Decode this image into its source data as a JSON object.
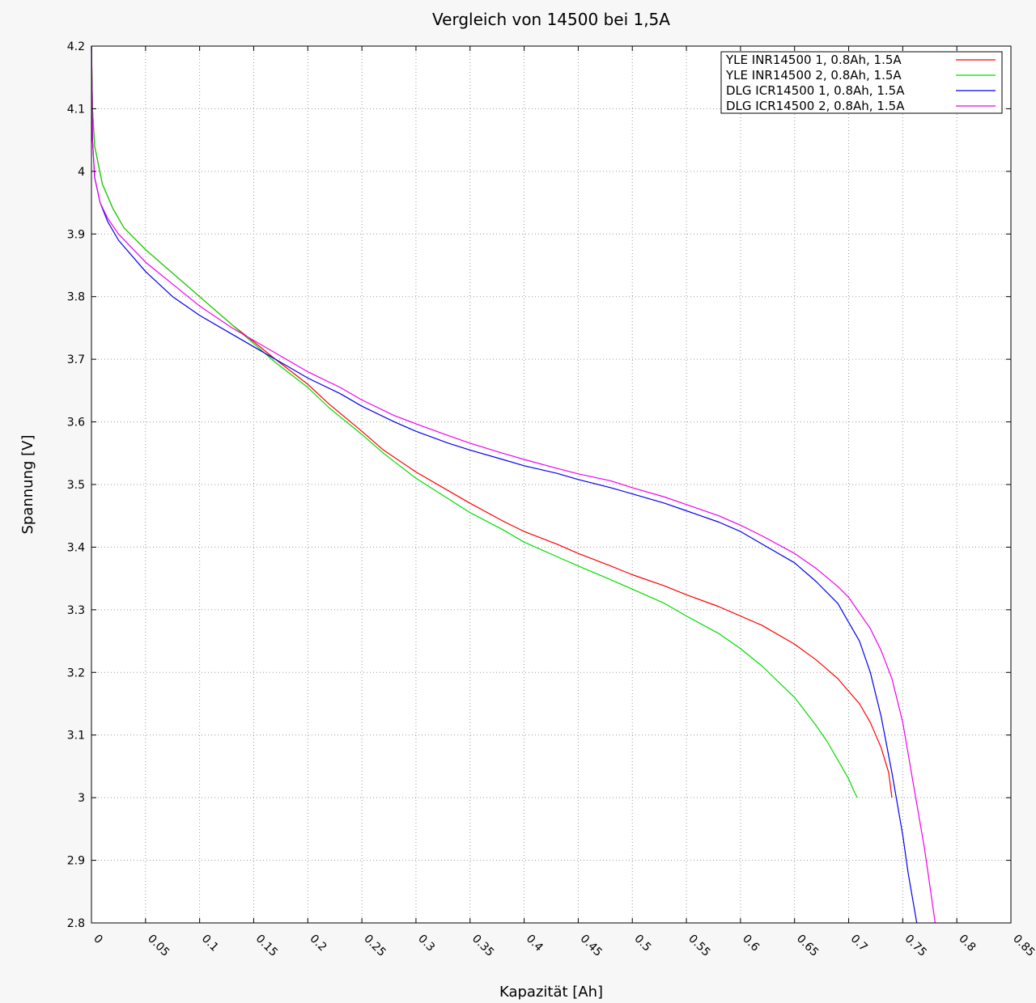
{
  "chart_data": {
    "type": "line",
    "title": "Vergleich von 14500 bei 1,5A",
    "xlabel": "Kapazität [Ah]",
    "ylabel": "Spannung [V]",
    "xlim": [
      0,
      0.85
    ],
    "ylim": [
      2.8,
      4.2
    ],
    "x_ticks": [
      "0",
      "0.05",
      "0.1",
      "0.15",
      "0.2",
      "0.25",
      "0.3",
      "0.35",
      "0.4",
      "0.45",
      "0.5",
      "0.55",
      "0.6",
      "0.65",
      "0.7",
      "0.75",
      "0.8",
      "0.85"
    ],
    "y_ticks": [
      "2.8",
      "2.9",
      "3",
      "3.1",
      "3.2",
      "3.3",
      "3.4",
      "3.5",
      "3.6",
      "3.7",
      "3.8",
      "3.9",
      "4",
      "4.1",
      "4.2"
    ],
    "grid": true,
    "legend_position": "top-right",
    "series": [
      {
        "name": "YLE INR14500 1, 0.8Ah, 1.5A",
        "color": "#ff0000",
        "x": [
          0,
          0.001,
          0.003,
          0.01,
          0.02,
          0.03,
          0.05,
          0.07,
          0.1,
          0.13,
          0.15,
          0.17,
          0.2,
          0.22,
          0.25,
          0.27,
          0.3,
          0.33,
          0.35,
          0.38,
          0.4,
          0.43,
          0.45,
          0.48,
          0.5,
          0.53,
          0.55,
          0.58,
          0.6,
          0.62,
          0.65,
          0.67,
          0.69,
          0.7,
          0.71,
          0.72,
          0.73,
          0.737,
          0.74
        ],
        "y": [
          4.2,
          4.1,
          4.04,
          3.98,
          3.94,
          3.91,
          3.875,
          3.845,
          3.8,
          3.755,
          3.728,
          3.7,
          3.66,
          3.628,
          3.585,
          3.555,
          3.52,
          3.49,
          3.47,
          3.442,
          3.425,
          3.405,
          3.39,
          3.37,
          3.356,
          3.338,
          3.324,
          3.305,
          3.29,
          3.275,
          3.245,
          3.22,
          3.19,
          3.17,
          3.15,
          3.12,
          3.08,
          3.04,
          3.0
        ]
      },
      {
        "name": "YLE INR14500 2, 0.8Ah, 1.5A",
        "color": "#00dd00",
        "x": [
          0,
          0.001,
          0.003,
          0.01,
          0.02,
          0.03,
          0.05,
          0.07,
          0.1,
          0.13,
          0.15,
          0.17,
          0.2,
          0.22,
          0.25,
          0.27,
          0.3,
          0.33,
          0.35,
          0.38,
          0.4,
          0.43,
          0.45,
          0.48,
          0.5,
          0.53,
          0.55,
          0.58,
          0.6,
          0.62,
          0.65,
          0.67,
          0.68,
          0.69,
          0.7,
          0.705,
          0.708
        ],
        "y": [
          4.2,
          4.1,
          4.04,
          3.98,
          3.94,
          3.91,
          3.875,
          3.845,
          3.8,
          3.755,
          3.725,
          3.695,
          3.655,
          3.622,
          3.58,
          3.55,
          3.51,
          3.477,
          3.455,
          3.428,
          3.408,
          3.385,
          3.37,
          3.348,
          3.333,
          3.31,
          3.29,
          3.262,
          3.238,
          3.21,
          3.16,
          3.115,
          3.09,
          3.06,
          3.03,
          3.01,
          3.0
        ]
      },
      {
        "name": "DLG ICR14500 1, 0.8Ah, 1.5A",
        "color": "#0000ee",
        "x": [
          0,
          0.001,
          0.003,
          0.008,
          0.015,
          0.025,
          0.05,
          0.075,
          0.1,
          0.13,
          0.15,
          0.18,
          0.2,
          0.23,
          0.25,
          0.28,
          0.3,
          0.33,
          0.35,
          0.38,
          0.4,
          0.43,
          0.45,
          0.48,
          0.5,
          0.53,
          0.55,
          0.58,
          0.6,
          0.62,
          0.65,
          0.67,
          0.69,
          0.7,
          0.71,
          0.72,
          0.73,
          0.74,
          0.75,
          0.755,
          0.76,
          0.763
        ],
        "y": [
          4.2,
          4.05,
          3.99,
          3.95,
          3.92,
          3.89,
          3.84,
          3.8,
          3.77,
          3.74,
          3.72,
          3.69,
          3.67,
          3.645,
          3.625,
          3.6,
          3.585,
          3.566,
          3.555,
          3.54,
          3.53,
          3.518,
          3.508,
          3.495,
          3.485,
          3.47,
          3.458,
          3.44,
          3.425,
          3.405,
          3.375,
          3.345,
          3.31,
          3.28,
          3.25,
          3.2,
          3.13,
          3.04,
          2.94,
          2.88,
          2.83,
          2.8
        ]
      },
      {
        "name": "DLG ICR14500 2, 0.8Ah, 1.5A",
        "color": "#ee00ee",
        "x": [
          0,
          0.001,
          0.003,
          0.008,
          0.015,
          0.025,
          0.05,
          0.075,
          0.1,
          0.13,
          0.15,
          0.18,
          0.2,
          0.23,
          0.25,
          0.28,
          0.3,
          0.33,
          0.35,
          0.38,
          0.4,
          0.43,
          0.45,
          0.48,
          0.5,
          0.53,
          0.55,
          0.58,
          0.6,
          0.62,
          0.65,
          0.67,
          0.69,
          0.7,
          0.72,
          0.73,
          0.74,
          0.75,
          0.76,
          0.77,
          0.775,
          0.78
        ],
        "y": [
          4.2,
          4.05,
          3.99,
          3.95,
          3.925,
          3.9,
          3.855,
          3.82,
          3.785,
          3.75,
          3.73,
          3.7,
          3.68,
          3.655,
          3.635,
          3.61,
          3.597,
          3.578,
          3.566,
          3.55,
          3.54,
          3.526,
          3.517,
          3.506,
          3.495,
          3.48,
          3.468,
          3.45,
          3.435,
          3.418,
          3.39,
          3.366,
          3.337,
          3.32,
          3.27,
          3.235,
          3.19,
          3.12,
          3.02,
          2.92,
          2.86,
          2.8
        ]
      }
    ]
  }
}
